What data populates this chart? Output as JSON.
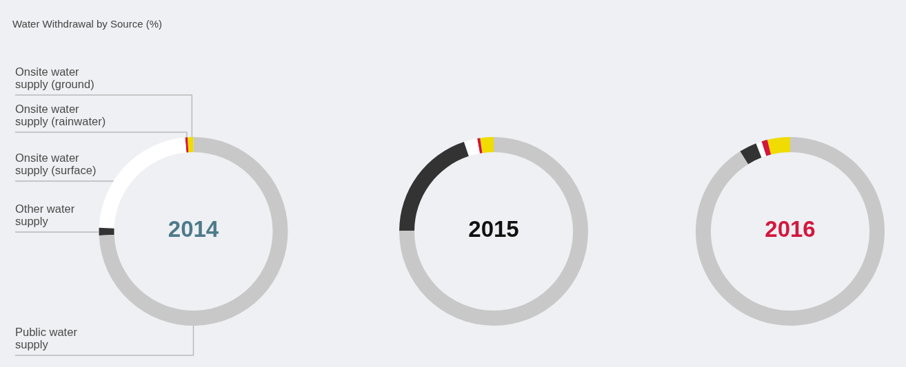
{
  "chart_data": [
    {
      "type": "donut",
      "title": "Water Withdrawal by Source (%)",
      "annotations": [
        "2014"
      ],
      "categories": [
        "Onsite water supply (ground)",
        "Onsite water supply (rainwater)",
        "Onsite water supply (surface)",
        "Other water supply",
        "Public water supply"
      ],
      "values": [
        1.0,
        0.4,
        23.0,
        1.3,
        74.3
      ],
      "colors": [
        "#f0dc00",
        "#d4163c",
        "#ffffff",
        "#333333",
        "#c8c8c8"
      ]
    },
    {
      "type": "donut",
      "annotations": [
        "2015"
      ],
      "categories": [
        null,
        null,
        null,
        null,
        null
      ],
      "values": [
        2.3,
        0.5,
        2.3,
        19.8,
        75.1
      ],
      "colors": [
        "#f0dc00",
        "#d4163c",
        "#ffffff",
        "#333333",
        "#c8c8c8"
      ]
    },
    {
      "type": "donut",
      "annotations": [
        "2016"
      ],
      "categories": [
        null,
        null,
        null,
        null,
        null
      ],
      "values": [
        3.9,
        1.0,
        1.0,
        3.0,
        91.1
      ],
      "colors": [
        "#f0dc00",
        "#d4163c",
        "#ffffff",
        "#333333",
        "#c8c8c8"
      ]
    }
  ]
}
